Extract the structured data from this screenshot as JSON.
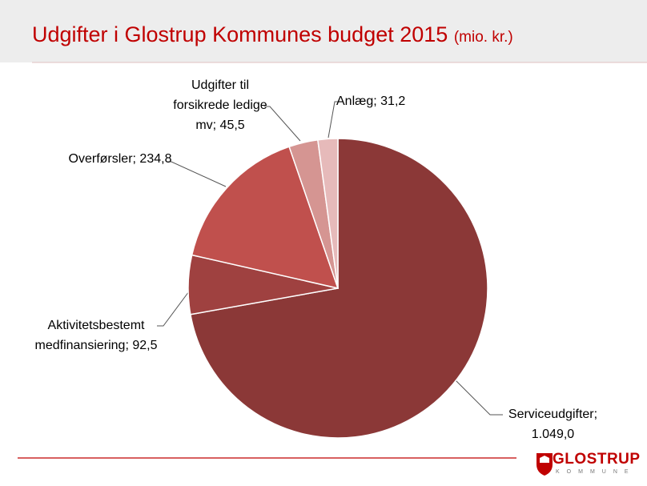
{
  "chart_data": {
    "type": "pie",
    "title": "Udgifter i Glostrup Kommunes budget 2015",
    "subtitle": "(mio. kr.)",
    "categories": [
      "Serviceudgifter",
      "Aktivitetsbestemt medfinansiering",
      "Overførsler",
      "Udgifter til forsikrede ledige mv",
      "Anlæg"
    ],
    "values": [
      1049.0,
      92.5,
      234.8,
      45.5,
      31.2
    ],
    "value_labels": [
      "1.049,0",
      "92,5",
      "234,8",
      "45,5",
      "31,2"
    ],
    "label_separator": ";",
    "colors": [
      "#8b3837",
      "#9f4140",
      "#c0504d",
      "#d59592",
      "#e6baba"
    ]
  },
  "logo": {
    "name": "GLOSTRUP",
    "subtitle": "KOMMUNE"
  }
}
